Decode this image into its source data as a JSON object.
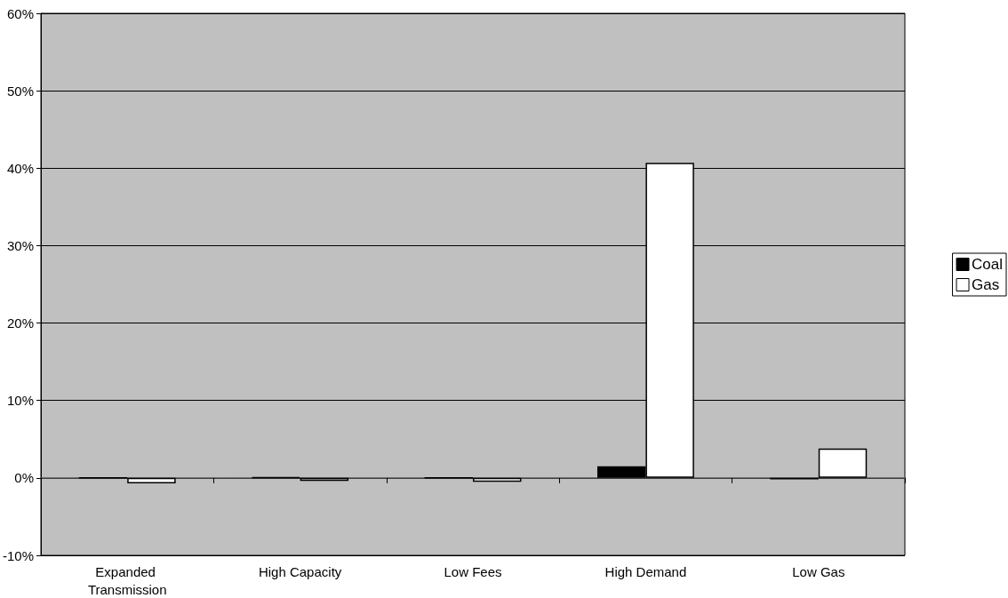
{
  "chart_data": {
    "type": "bar",
    "categories": [
      "Expanded Transmission",
      "High Capacity",
      "Low Fees",
      "High Demand",
      "Low Gas"
    ],
    "series": [
      {
        "name": "Coal",
        "color": "#000000",
        "values": [
          0,
          0.1,
          0,
          1.5,
          -0.2
        ]
      },
      {
        "name": "Gas",
        "color": "#ffffff",
        "values": [
          -0.7,
          -0.4,
          -0.5,
          40.7,
          3.8
        ]
      }
    ],
    "ylim": [
      -10,
      60
    ],
    "yticks": [
      {
        "value": -10,
        "label": "-10%"
      },
      {
        "value": 0,
        "label": "0%"
      },
      {
        "value": 10,
        "label": "10%"
      },
      {
        "value": 20,
        "label": "20%"
      },
      {
        "value": 30,
        "label": "30%"
      },
      {
        "value": 40,
        "label": "40%"
      },
      {
        "value": 50,
        "label": "50%"
      },
      {
        "value": 60,
        "label": "60%"
      }
    ],
    "grid": "y",
    "legend": "right"
  }
}
